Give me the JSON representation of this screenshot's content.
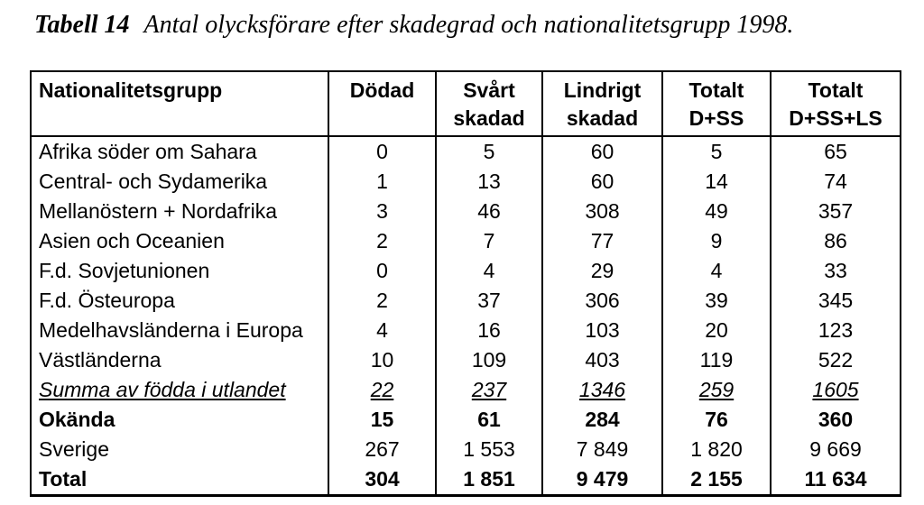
{
  "caption": {
    "label": "Tabell 14",
    "text": "Antal olycksförare efter skadegrad och nationalitetsgrupp 1998."
  },
  "table": {
    "columns": [
      {
        "line1": "Nationalitetsgrupp",
        "line2": ""
      },
      {
        "line1": "Dödad",
        "line2": ""
      },
      {
        "line1": "Svårt",
        "line2": "skadad"
      },
      {
        "line1": "Lindrigt",
        "line2": "skadad"
      },
      {
        "line1": "Totalt",
        "line2": "D+SS"
      },
      {
        "line1": "Totalt",
        "line2": "D+SS+LS"
      }
    ],
    "rows": [
      {
        "label": "Afrika söder om Sahara",
        "values": [
          "0",
          "5",
          "60",
          "5",
          "65"
        ],
        "style": "normal"
      },
      {
        "label": "Central- och Sydamerika",
        "values": [
          "1",
          "13",
          "60",
          "14",
          "74"
        ],
        "style": "normal"
      },
      {
        "label": "Mellanöstern + Nordafrika",
        "values": [
          "3",
          "46",
          "308",
          "49",
          "357"
        ],
        "style": "normal"
      },
      {
        "label": "Asien och Oceanien",
        "values": [
          "2",
          "7",
          "77",
          "9",
          "86"
        ],
        "style": "normal"
      },
      {
        "label": "F.d. Sovjetunionen",
        "values": [
          "0",
          "4",
          "29",
          "4",
          "33"
        ],
        "style": "normal"
      },
      {
        "label": "F.d. Östeuropa",
        "values": [
          "2",
          "37",
          "306",
          "39",
          "345"
        ],
        "style": "normal"
      },
      {
        "label": "Medelhavsländerna i Europa",
        "values": [
          "4",
          "16",
          "103",
          "20",
          "123"
        ],
        "style": "normal"
      },
      {
        "label": "Västländerna",
        "values": [
          "10",
          "109",
          "403",
          "119",
          "522"
        ],
        "style": "normal"
      },
      {
        "label": "Summa av födda i utlandet",
        "values": [
          "22",
          "237",
          "1346",
          "259",
          "1605"
        ],
        "style": "summa"
      },
      {
        "label": "Okända",
        "values": [
          "15",
          "61",
          "284",
          "76",
          "360"
        ],
        "style": "bold"
      },
      {
        "label": "Sverige",
        "values": [
          "267",
          "1 553",
          "7 849",
          "1 820",
          "9 669"
        ],
        "style": "normal"
      },
      {
        "label": "Total",
        "values": [
          "304",
          "1 851",
          "9 479",
          "2 155",
          "11 634"
        ],
        "style": "bold"
      }
    ]
  },
  "colors": {
    "background": "#ffffff",
    "text": "#000000",
    "border": "#000000"
  }
}
